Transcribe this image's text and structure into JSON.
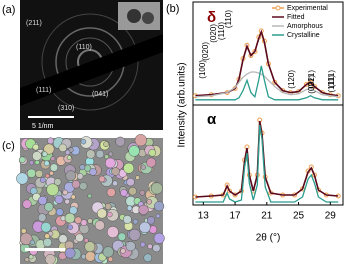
{
  "figure": {
    "panel_a": {
      "label": "(a)",
      "spots": [
        "(211)",
        "(110)",
        "(111)",
        "(041)",
        "(310)"
      ],
      "scale": "5 1/nm"
    },
    "panel_b": {
      "label": "(b)"
    },
    "panel_c": {
      "label": "(c)"
    }
  },
  "chart_data": [
    {
      "type": "line",
      "phase": "δ",
      "y_label": "Intensity (arb.units)",
      "xlim": [
        11.7,
        30.6
      ],
      "ylim": [
        0,
        100
      ],
      "legend": "upper right",
      "annotations": [
        "(020)",
        "(110)",
        "(021)",
        "(111)"
      ],
      "x": [
        12,
        14,
        16,
        17,
        17.5,
        18,
        18.5,
        19,
        19.5,
        20,
        20.3,
        20.7,
        21.2,
        22,
        23,
        24,
        25,
        26,
        26.5,
        27,
        28,
        29,
        30
      ],
      "series": [
        {
          "name": "Experimental",
          "color": "#f0a050",
          "values": [
            9,
            10,
            12,
            16,
            25,
            45,
            58,
            48,
            52,
            66,
            72,
            62,
            40,
            22,
            14,
            12,
            13,
            20,
            22,
            18,
            12,
            10,
            9
          ]
        },
        {
          "name": "Fitted",
          "color": "#5a0a1e",
          "values": [
            9,
            10,
            12,
            16,
            25,
            44,
            57,
            48,
            52,
            65,
            71,
            61,
            40,
            22,
            14,
            12,
            13,
            20,
            22,
            18,
            12,
            10,
            9
          ]
        },
        {
          "name": "Amorphous",
          "color": "#b8b8b8",
          "values": [
            8,
            9,
            12,
            17,
            22,
            27,
            30,
            32,
            32,
            31,
            30,
            28,
            24,
            18,
            12,
            10,
            11,
            15,
            16,
            14,
            10,
            9,
            8
          ]
        },
        {
          "name": "Crystalline",
          "color": "#2a9d8f",
          "values": [
            5,
            5,
            5,
            5,
            7,
            14,
            24,
            12,
            8,
            25,
            38,
            24,
            8,
            5,
            5,
            5,
            5,
            7,
            9,
            7,
            5,
            5,
            5
          ]
        }
      ]
    },
    {
      "type": "line",
      "phase": "α",
      "x_label": "2θ (°)",
      "xlim": [
        11.7,
        30.6
      ],
      "ylim": [
        0,
        100
      ],
      "xticks": [
        13,
        17,
        21,
        25,
        29
      ],
      "annotations": [
        "(100)",
        "(020)",
        "(110)",
        "(120)",
        "(021)",
        "(111)"
      ],
      "x": [
        12,
        14,
        15.5,
        16,
        16.3,
        17,
        17.8,
        18.2,
        18.5,
        18.8,
        19.3,
        19.8,
        20.1,
        20.4,
        20.8,
        21.5,
        23,
        24.5,
        25.5,
        26.2,
        26.6,
        27,
        27.5,
        28.5,
        30
      ],
      "series": [
        {
          "name": "Experimental",
          "color": "#f0a050",
          "values": [
            8,
            9,
            10,
            20,
            14,
            10,
            14,
            45,
            58,
            30,
            14,
            30,
            85,
            72,
            28,
            12,
            10,
            10,
            16,
            34,
            38,
            30,
            15,
            10,
            9
          ]
        },
        {
          "name": "Fitted",
          "color": "#5a0a1e",
          "values": [
            8,
            9,
            10,
            19,
            14,
            10,
            14,
            44,
            57,
            30,
            14,
            30,
            84,
            71,
            28,
            12,
            10,
            10,
            16,
            33,
            37,
            30,
            15,
            10,
            9
          ]
        },
        {
          "name": "Crystalline",
          "color": "#2a9d8f",
          "values": [
            3,
            3,
            3,
            12,
            6,
            3,
            5,
            38,
            52,
            22,
            5,
            20,
            80,
            66,
            18,
            3,
            3,
            3,
            8,
            26,
            30,
            22,
            8,
            3,
            3
          ]
        }
      ]
    }
  ]
}
